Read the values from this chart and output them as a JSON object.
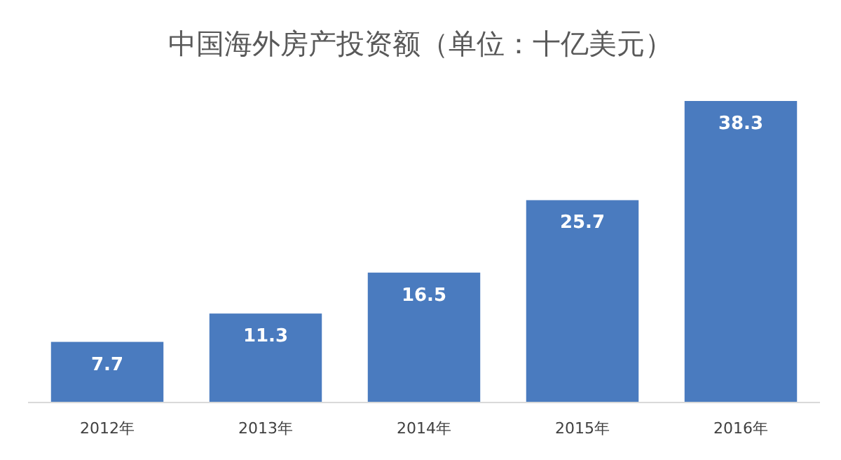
{
  "chart_data": {
    "type": "bar",
    "title": "中国海外房产投资额（单位：十亿美元）",
    "categories": [
      "2012年",
      "2013年",
      "2014年",
      "2015年",
      "2016年"
    ],
    "values": [
      7.7,
      11.3,
      16.5,
      25.7,
      38.3
    ],
    "color": "#4a7bbf",
    "data_labels": true
  }
}
